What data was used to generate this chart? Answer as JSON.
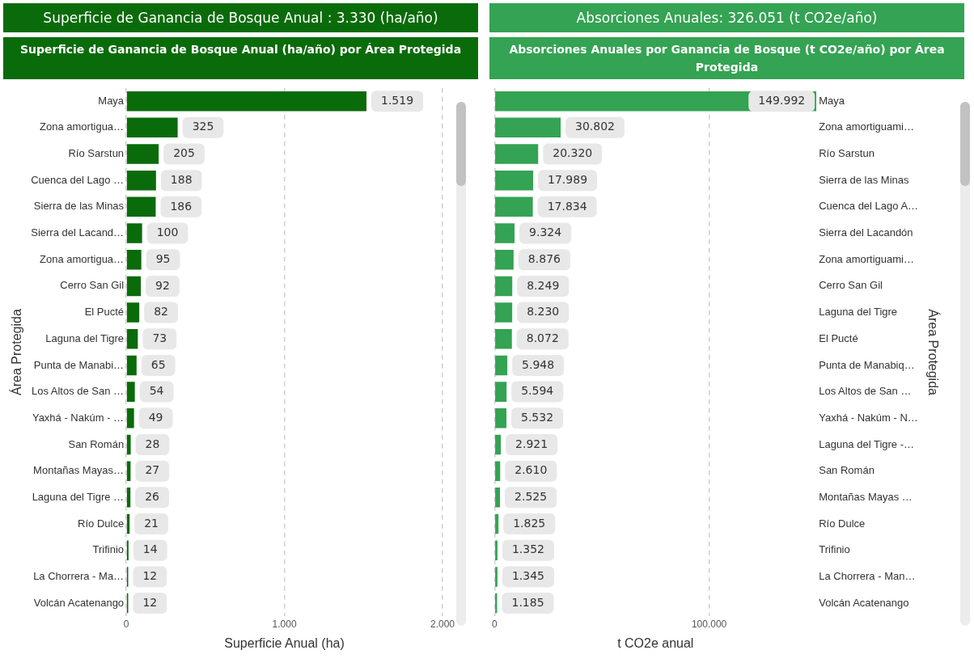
{
  "chart_data": [
    {
      "type": "bar",
      "orientation": "horizontal",
      "title": "Superficie de Ganancia de Bosque Anual : 3.330 (ha/año)",
      "subtitle": "Superficie de Ganancia de Bosque Anual (ha/año) por Área Protegida",
      "xlabel": "Superficie Anual (ha)",
      "ylabel": "Área Protegida",
      "color": "#0a6b0a",
      "categories": [
        "Maya",
        "Zona amortigua…",
        "Río Sarstun",
        "Cuenca del Lago …",
        "Sierra de las Minas",
        "Sierra del Lacand…",
        "Zona amortigua…",
        "Cerro San Gil",
        "El Pucté",
        "Laguna del Tigre",
        "Punta de Manabi…",
        "Los Altos de San …",
        "Yaxhá - Nakúm - …",
        "San Román",
        "Montañas Mayas…",
        "Laguna del Tigre …",
        "Río Dulce",
        "Trifinio",
        "La Chorrera - Ma…",
        "Volcán Acatenango"
      ],
      "values": [
        1519,
        325,
        205,
        188,
        186,
        100,
        95,
        92,
        82,
        73,
        65,
        54,
        49,
        28,
        27,
        26,
        21,
        14,
        12,
        12
      ],
      "value_labels": [
        "1.519",
        "325",
        "205",
        "188",
        "186",
        "100",
        "95",
        "92",
        "82",
        "73",
        "65",
        "54",
        "49",
        "28",
        "27",
        "26",
        "21",
        "14",
        "12",
        "12"
      ],
      "xlim": [
        0,
        2000
      ],
      "xticks": [
        0,
        {
          "value": 1000,
          "label": "1.000"
        },
        {
          "value": 2000,
          "label": "2.000"
        }
      ],
      "grid": "x",
      "legend": false
    },
    {
      "type": "bar",
      "orientation": "horizontal",
      "title": "Absorciones Anuales: 326.051 (t CO2e/año)",
      "subtitle": "Absorciones Anuales por Ganancia de Bosque (t CO2e/año) por Área Protegida",
      "xlabel": "t CO2e anual",
      "ylabel": "Área Protegida",
      "color": "#34a353",
      "categories": [
        "Maya",
        "Zona amortiguami…",
        "Río Sarstun",
        "Sierra de las Minas",
        "Cuenca del Lago A…",
        "Sierra del Lacandón",
        "Zona amortiguami…",
        "Cerro San Gil",
        "Laguna del Tigre",
        "El Pucté",
        "Punta de Manabiq…",
        "Los Altos de San …",
        "Yaxhá - Nakúm - N…",
        "Laguna del Tigre -…",
        "San Román",
        "Montañas Mayas …",
        "Río Dulce",
        "Trifinio",
        "La Chorrera - Man…",
        "Volcán Acatenango"
      ],
      "values": [
        149992,
        30802,
        20320,
        17989,
        17834,
        9324,
        8876,
        8249,
        8230,
        8072,
        5948,
        5594,
        5532,
        2921,
        2610,
        2525,
        1825,
        1352,
        1345,
        1185
      ],
      "value_labels": [
        "149.992",
        "30.802",
        "20.320",
        "17.989",
        "17.834",
        "9.324",
        "8.876",
        "8.249",
        "8.230",
        "8.072",
        "5.948",
        "5.594",
        "5.532",
        "2.921",
        "2.610",
        "2.525",
        "1.825",
        "1.352",
        "1.345",
        "1.185"
      ],
      "xlim": [
        0,
        150000
      ],
      "xticks": [
        0,
        {
          "value": 100000,
          "label": "100.000"
        }
      ],
      "grid": "x",
      "legend": false
    }
  ]
}
